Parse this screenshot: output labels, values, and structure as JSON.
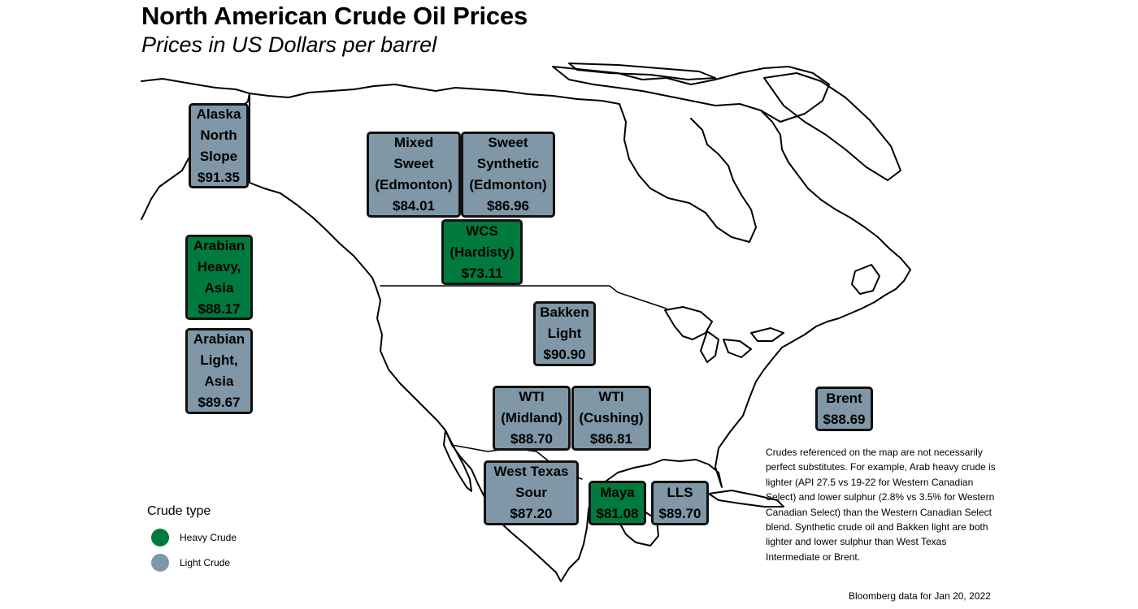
{
  "title": "North American Crude Oil Prices",
  "subtitle": "Prices in US Dollars per barrel",
  "colors": {
    "heavy": "#007a3d",
    "light": "#7f97a6",
    "border": "#111111"
  },
  "crudes": [
    {
      "id": "alaska-north-slope",
      "lines": [
        "Alaska",
        "North",
        "Slope"
      ],
      "price": "$91.35",
      "type": "Light Crude"
    },
    {
      "id": "mixed-sweet-edmonton",
      "lines": [
        "Mixed",
        "Sweet",
        "(Edmonton)"
      ],
      "price": "$84.01",
      "type": "Light Crude"
    },
    {
      "id": "sweet-synthetic-edmonton",
      "lines": [
        "Sweet",
        "Synthetic",
        "(Edmonton)"
      ],
      "price": "$86.96",
      "type": "Light Crude"
    },
    {
      "id": "wcs-hardisty",
      "lines": [
        "WCS",
        "(Hardisty)"
      ],
      "price": "$73.11",
      "type": "Heavy Crude"
    },
    {
      "id": "arabian-heavy-asia",
      "lines": [
        "Arabian",
        "Heavy,",
        "Asia"
      ],
      "price": "$88.17",
      "type": "Heavy Crude"
    },
    {
      "id": "arabian-light-asia",
      "lines": [
        "Arabian",
        "Light,",
        "Asia"
      ],
      "price": "$89.67",
      "type": "Light Crude"
    },
    {
      "id": "bakken-light",
      "lines": [
        "Bakken",
        "Light"
      ],
      "price": "$90.90",
      "type": "Light Crude"
    },
    {
      "id": "wti-midland",
      "lines": [
        "WTI",
        "(Midland)"
      ],
      "price": "$88.70",
      "type": "Light Crude"
    },
    {
      "id": "wti-cushing",
      "lines": [
        "WTI",
        "(Cushing)"
      ],
      "price": "$86.81",
      "type": "Light Crude"
    },
    {
      "id": "brent",
      "lines": [
        "Brent"
      ],
      "price": "$88.69",
      "type": "Light Crude"
    },
    {
      "id": "west-texas-sour",
      "lines": [
        "West Texas",
        "Sour"
      ],
      "price": "$87.20",
      "type": "Light Crude"
    },
    {
      "id": "maya",
      "lines": [
        "Maya"
      ],
      "price": "$81.08",
      "type": "Heavy Crude"
    },
    {
      "id": "lls",
      "lines": [
        "LLS"
      ],
      "price": "$89.70",
      "type": "Light Crude"
    }
  ],
  "legend": {
    "title": "Crude type",
    "items": [
      {
        "label": "Heavy Crude",
        "color": "#007a3d"
      },
      {
        "label": "Light Crude",
        "color": "#7f97a6"
      }
    ]
  },
  "note": "Crudes referenced on the map are not necessarily perfect substitutes. For example, Arab heavy crude is lighter (API 27.5 vs 19-22 for Western Canadian Select) and lower sulphur (2.8% vs 3.5% for Western Canadian Select) than the Western Canadian Select blend. Synthetic crude oil and Bakken light are both lighter and lower sulphur than West Texas Intermediate or Brent.",
  "source": "Bloomberg data for Jan 20, 2022"
}
